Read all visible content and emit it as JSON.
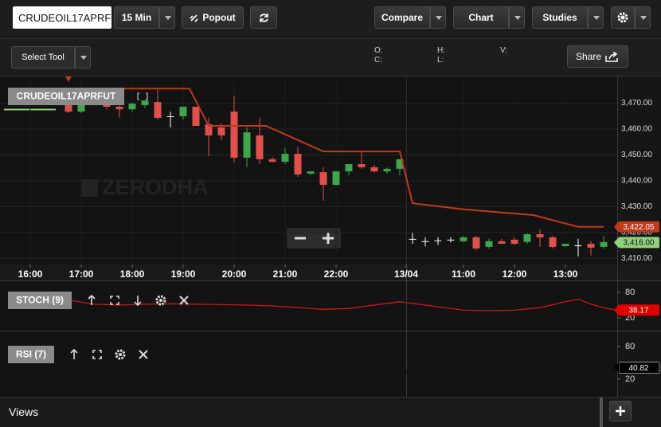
{
  "toolbar": {
    "symbol": "CRUDEOIL17APRF",
    "interval": "15 Min",
    "popout": "Popout",
    "compare": "Compare",
    "chart": "Chart",
    "studies": "Studies"
  },
  "subbar": {
    "select_tool": "Select Tool",
    "ohlc_labels": [
      "O:",
      "C:",
      "H:",
      "L:",
      "V:"
    ],
    "share": "Share"
  },
  "chart_data": [
    {
      "type": "candlestick",
      "title": "CRUDEOIL17APRFUT",
      "watermark": "ZERODHA",
      "up_color": "#3fa64c",
      "down_color": "#e0504c",
      "flat_color": "#ffffff",
      "x": [
        4,
        5,
        6,
        7,
        8,
        9,
        10,
        11,
        12,
        13,
        14,
        15,
        16,
        17,
        18,
        19,
        20,
        21,
        22,
        23,
        24,
        25,
        26,
        27,
        28,
        29,
        30,
        31,
        32,
        33,
        34,
        35,
        36,
        37,
        38,
        39,
        40,
        41,
        42,
        43,
        44,
        45,
        46
      ],
      "open": [
        3470.3,
        3466.6,
        3470.9,
        3469.7,
        3468.5,
        3467.5,
        3469.1,
        3470.3,
        3464.8,
        3464.8,
        3468.5,
        3461.7,
        3460.5,
        3466.6,
        3448.8,
        3457.4,
        3448.2,
        3447.2,
        3450.3,
        3442.6,
        3443.2,
        3438.3,
        3443.5,
        3446.3,
        3445.1,
        3443.5,
        3444.5,
        3417.4,
        3416.5,
        3416.8,
        3417.1,
        3416.5,
        3418.0,
        3414.3,
        3416.5,
        3417.1,
        3416.2,
        3419.2,
        3418.0,
        3414.6,
        3414.9,
        3415.5,
        3414.3
      ],
      "high": [
        3471,
        3470,
        3472,
        3470.5,
        3469,
        3470,
        3471,
        3475.2,
        3466.6,
        3468.5,
        3468.5,
        3464.2,
        3462,
        3472.8,
        3460.5,
        3464.2,
        3449,
        3452.5,
        3453,
        3443.5,
        3445.1,
        3443.5,
        3446.3,
        3451,
        3446,
        3445,
        3448.2,
        3419.8,
        3418,
        3418,
        3418,
        3418.5,
        3418.5,
        3417.5,
        3417.4,
        3418,
        3419.5,
        3421.1,
        3418.5,
        3415.5,
        3417.4,
        3416.5,
        3418.5
      ],
      "low": [
        3466,
        3466,
        3469,
        3467.5,
        3464.2,
        3466.6,
        3468,
        3463.5,
        3460.5,
        3463.5,
        3461.1,
        3449.4,
        3455.5,
        3446.9,
        3445.1,
        3446.3,
        3447,
        3446.3,
        3441.4,
        3442,
        3432.2,
        3438,
        3442,
        3444.5,
        3443,
        3442.5,
        3442,
        3415.5,
        3414.5,
        3415,
        3416,
        3416,
        3413,
        3413.5,
        3415.5,
        3415,
        3415.5,
        3414.3,
        3413.7,
        3414.3,
        3410.6,
        3411,
        3413.5
      ],
      "close": [
        3466.6,
        3469.7,
        3469.1,
        3468.5,
        3467.5,
        3469.7,
        3470.9,
        3464.2,
        3464.8,
        3468.5,
        3461.1,
        3457.4,
        3457.4,
        3448.8,
        3458.6,
        3448.2,
        3447.2,
        3450.3,
        3442.3,
        3443.5,
        3438.3,
        3443.5,
        3446.3,
        3445.1,
        3443.5,
        3444.5,
        3448.2,
        3417.4,
        3416.5,
        3416.8,
        3417.1,
        3418.0,
        3413.7,
        3416.5,
        3415.5,
        3415.5,
        3419.2,
        3418.0,
        3414.3,
        3415.5,
        3414.9,
        3414.0,
        3416.2
      ],
      "series": [
        {
          "color": "#c0391b",
          "x": [
            4,
            13.5,
            15,
            19.5,
            24,
            30,
            31,
            35,
            40.5,
            44,
            46
          ],
          "values": [
            3475.5,
            3475.5,
            3461.1,
            3461.1,
            3451.2,
            3451.2,
            3431.2,
            3428.8,
            3426.6,
            3422.05,
            3422.05
          ]
        }
      ],
      "price_tags": [
        {
          "value": 3422.05,
          "label": "3,422.05",
          "color": "#c0391b"
        },
        {
          "value": 3416,
          "label": "3,416.00",
          "color": "#8fd17a"
        }
      ],
      "xlim": [
        -1.375,
        47.0625
      ],
      "ylim": [
        3407.5,
        3480.5
      ],
      "yticks": [
        {
          "value": 3410,
          "label": "3,410.00"
        },
        {
          "value": 3420,
          "label": "3,420.00"
        },
        {
          "value": 3430,
          "label": "3,430.00"
        },
        {
          "value": 3440,
          "label": "3,440.00"
        },
        {
          "value": 3450,
          "label": "3,450.00"
        },
        {
          "value": 3460,
          "label": "3,460.00"
        },
        {
          "value": 3470,
          "label": "3,470.00"
        }
      ],
      "xticks": [
        {
          "value": 1,
          "label": "16:00"
        },
        {
          "value": 5,
          "label": "17:00"
        },
        {
          "value": 9,
          "label": "18:00"
        },
        {
          "value": 13,
          "label": "19:00"
        },
        {
          "value": 17,
          "label": "20:00"
        },
        {
          "value": 21,
          "label": "21:00"
        },
        {
          "value": 25,
          "label": "22:00"
        },
        {
          "value": 30.5,
          "label": "13/04"
        },
        {
          "value": 35,
          "label": "11:00"
        },
        {
          "value": 39,
          "label": "12:00"
        },
        {
          "value": 43,
          "label": "13:00"
        }
      ],
      "grid": true
    },
    {
      "type": "line",
      "title": "STOCH (9)",
      "x": [
        0,
        2,
        4,
        6,
        8,
        10,
        12,
        14,
        16,
        18,
        20,
        22,
        24,
        26,
        28,
        30,
        31,
        33,
        35,
        37,
        39,
        41,
        43,
        44,
        45,
        46,
        47
      ],
      "series": [
        {
          "color": "#111111",
          "values": [
            80,
            80,
            52,
            48,
            50,
            50,
            51,
            50,
            49,
            48,
            46,
            40,
            41,
            48,
            58,
            60,
            56,
            40,
            36,
            37,
            40,
            58,
            72,
            66,
            48,
            40,
            40
          ]
        },
        {
          "color": "#d01818",
          "values": [
            78,
            76,
            62,
            52,
            50,
            52,
            53,
            52,
            51,
            50,
            48,
            44,
            40,
            42,
            50,
            58,
            54,
            46,
            38,
            37,
            38,
            44,
            58,
            64,
            52,
            44,
            38
          ]
        }
      ],
      "last_value": 38.17,
      "tag_color": "#e00000",
      "xlim": [
        -1.375,
        47.0625
      ],
      "ylim": [
        -10,
        108
      ],
      "yticks": [
        20,
        80
      ]
    },
    {
      "type": "line",
      "title": "RSI (7)",
      "x": [
        0,
        2,
        4,
        6,
        8,
        10,
        12,
        14,
        16,
        18,
        20,
        22,
        24,
        26,
        28,
        30,
        31,
        33,
        35,
        37,
        39,
        41,
        43,
        45,
        47
      ],
      "series": [
        {
          "color": "#111111",
          "values": [
            48,
            50,
            44,
            50,
            46,
            48,
            44,
            48,
            40,
            46,
            44,
            40,
            42,
            46,
            44,
            48,
            20,
            20,
            22,
            28,
            36,
            42,
            38,
            38,
            44
          ]
        }
      ],
      "last_value": 40.82,
      "tag_color": "#000000",
      "xlim": [
        -1.375,
        47.0625
      ],
      "ylim": [
        -8,
        102
      ],
      "yticks": [
        20,
        80
      ]
    }
  ],
  "footer": {
    "views": "Views"
  }
}
